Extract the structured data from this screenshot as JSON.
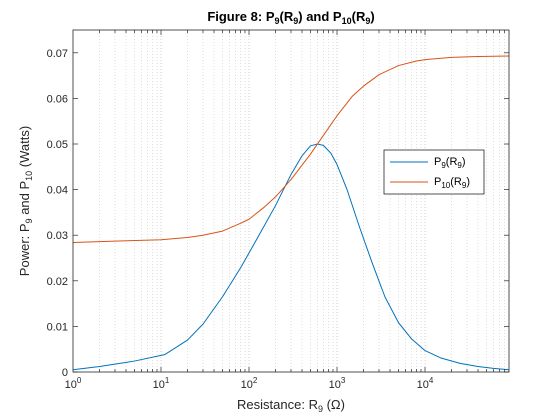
{
  "chart_data": {
    "type": "line",
    "title": {
      "prefix": "Figure 8: P",
      "sub_a": "9",
      "mid_a": "(R",
      "sub_b": "9",
      "mid_b": ") and P",
      "sub_c": "10",
      "mid_c": "(R",
      "sub_d": "9",
      "suffix": ")"
    },
    "xlabel": {
      "prefix": "Resistance: R",
      "sub": "9",
      "suffix": " (Ω)"
    },
    "ylabel": {
      "prefix": "Power: P",
      "sub_a": "9",
      "mid": " and P",
      "sub_b": "10",
      "suffix": " (Watts)"
    },
    "x_scale": "log",
    "xlim": [
      1,
      90000
    ],
    "ylim": [
      0,
      0.075
    ],
    "grid": "x-minor-dotted",
    "x_ticks": [
      {
        "base": "10",
        "exp": "0",
        "value": 1
      },
      {
        "base": "10",
        "exp": "1",
        "value": 10
      },
      {
        "base": "10",
        "exp": "2",
        "value": 100
      },
      {
        "base": "10",
        "exp": "3",
        "value": 1000
      },
      {
        "base": "10",
        "exp": "4",
        "value": 10000
      }
    ],
    "y_ticks": [
      {
        "label": "0",
        "value": 0
      },
      {
        "label": "0.01",
        "value": 0.01
      },
      {
        "label": "0.02",
        "value": 0.02
      },
      {
        "label": "0.03",
        "value": 0.03
      },
      {
        "label": "0.04",
        "value": 0.04
      },
      {
        "label": "0.05",
        "value": 0.05
      },
      {
        "label": "0.06",
        "value": 0.06
      },
      {
        "label": "0.07",
        "value": 0.07
      }
    ],
    "legend": {
      "position": "right-middle",
      "entries": [
        {
          "main": "P",
          "sub": "9",
          "open": "(R",
          "sub2": "9",
          "close": ")",
          "color": "#0072BD"
        },
        {
          "main": "P",
          "sub": "10",
          "open": "(R",
          "sub2": "9",
          "close": ")",
          "color": "#D95319"
        }
      ]
    },
    "series": [
      {
        "key": "p9",
        "color": "#0072BD",
        "points": [
          [
            1,
            0.0005
          ],
          [
            2,
            0.0012
          ],
          [
            5,
            0.0024
          ],
          [
            11,
            0.0038
          ],
          [
            20,
            0.007
          ],
          [
            30,
            0.0105
          ],
          [
            50,
            0.0165
          ],
          [
            80,
            0.0228
          ],
          [
            120,
            0.0288
          ],
          [
            200,
            0.0365
          ],
          [
            300,
            0.0433
          ],
          [
            400,
            0.0474
          ],
          [
            500,
            0.0496
          ],
          [
            600,
            0.05
          ],
          [
            700,
            0.0497
          ],
          [
            850,
            0.048
          ],
          [
            1000,
            0.0455
          ],
          [
            1300,
            0.04
          ],
          [
            1800,
            0.0318
          ],
          [
            2500,
            0.024
          ],
          [
            3500,
            0.0165
          ],
          [
            5000,
            0.0108
          ],
          [
            7000,
            0.0073
          ],
          [
            10000,
            0.0047
          ],
          [
            15000,
            0.0031
          ],
          [
            25000,
            0.0019
          ],
          [
            40000,
            0.0012
          ],
          [
            60000,
            0.0008
          ],
          [
            90000,
            0.0005
          ]
        ]
      },
      {
        "key": "p10",
        "color": "#D95319",
        "points": [
          [
            1,
            0.0284
          ],
          [
            3,
            0.0287
          ],
          [
            10,
            0.029
          ],
          [
            20,
            0.0295
          ],
          [
            30,
            0.03
          ],
          [
            50,
            0.0309
          ],
          [
            80,
            0.0326
          ],
          [
            100,
            0.0335
          ],
          [
            150,
            0.0362
          ],
          [
            200,
            0.0384
          ],
          [
            300,
            0.0422
          ],
          [
            500,
            0.0478
          ],
          [
            800,
            0.0535
          ],
          [
            1000,
            0.0562
          ],
          [
            1500,
            0.0605
          ],
          [
            2000,
            0.0627
          ],
          [
            3000,
            0.0652
          ],
          [
            5000,
            0.0672
          ],
          [
            8000,
            0.0682
          ],
          [
            10000,
            0.0685
          ],
          [
            20000,
            0.069
          ],
          [
            40000,
            0.0692
          ],
          [
            90000,
            0.0693
          ]
        ]
      }
    ]
  }
}
